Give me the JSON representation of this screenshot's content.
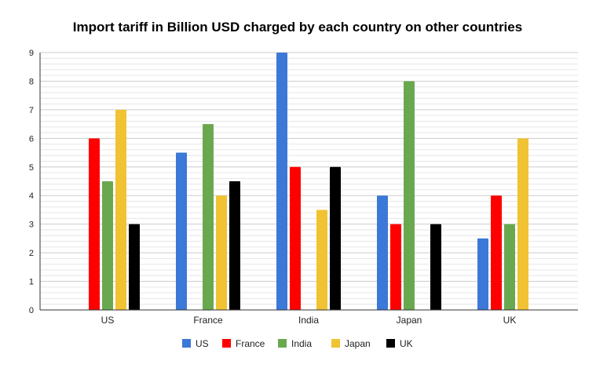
{
  "chart_data": {
    "type": "bar",
    "title": "Import tariff in Billion USD charged by each country on other countries",
    "xlabel": "",
    "ylabel": "",
    "categories": [
      "US",
      "France",
      "India",
      "Japan",
      "UK"
    ],
    "ylim": [
      0,
      9
    ],
    "yticks": [
      0,
      1,
      2,
      3,
      4,
      5,
      6,
      7,
      8,
      9
    ],
    "grid": true,
    "minor_grid_step": 0.2,
    "legend_position": "bottom",
    "series": [
      {
        "name": "US",
        "color": "#3c78d8",
        "values": [
          0,
          5.5,
          9,
          4,
          2.5
        ]
      },
      {
        "name": "France",
        "color": "#ff0000",
        "values": [
          6,
          0,
          5,
          3,
          4
        ]
      },
      {
        "name": "India",
        "color": "#6aa84f",
        "values": [
          4.5,
          6.5,
          0,
          8,
          3
        ]
      },
      {
        "name": "Japan",
        "color": "#f1c232",
        "values": [
          7,
          4,
          3.5,
          0,
          6
        ]
      },
      {
        "name": "UK",
        "color": "#000000",
        "values": [
          3,
          4.5,
          5,
          3,
          0
        ]
      }
    ]
  }
}
